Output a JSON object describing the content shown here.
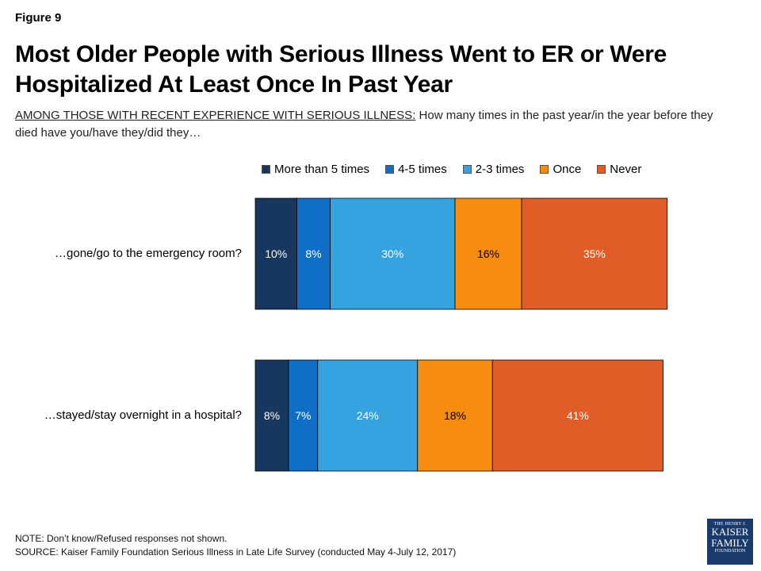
{
  "figure_label": "Figure 9",
  "subtitle_lead": "AMONG THOSE WITH RECENT EXPERIENCE WITH SERIOUS ILLNESS:",
  "subtitle_rest": " How many times in the past year/in the year before they died have you/have they/did they…",
  "note": "NOTE: Don’t know/Refused responses not shown.",
  "source": "SOURCE: Kaiser Family Foundation Serious Illness in Late Life Survey (conducted May 4-July 12, 2017)",
  "logo": {
    "line1": "THE HENRY J.",
    "line2": "KAISER",
    "line3": "FAMILY",
    "line4": "FOUNDATION"
  },
  "colors": {
    "more_than_5": "#17375e",
    "four_five": "#0f6fc6",
    "two_three": "#34a3e0",
    "once": "#f78c11",
    "never": "#e15d28"
  },
  "chart_data": {
    "type": "bar",
    "orientation": "horizontal-stacked",
    "title": "Most Older People with Serious Illness Went to ER or Were Hospitalized At Least Once In Past Year",
    "categories": [
      "…gone/go to the emergency room?",
      "…stayed/stay overnight in a hospital?"
    ],
    "series": [
      {
        "name": "More than 5 times",
        "color": "#17375e",
        "values": [
          10,
          8
        ]
      },
      {
        "name": "4-5 times",
        "color": "#0f6fc6",
        "values": [
          8,
          7
        ]
      },
      {
        "name": "2-3 times",
        "color": "#34a3e0",
        "values": [
          30,
          24
        ]
      },
      {
        "name": "Once",
        "color": "#f78c11",
        "values": [
          16,
          18
        ]
      },
      {
        "name": "Never",
        "color": "#e15d28",
        "values": [
          35,
          41
        ]
      }
    ],
    "value_suffix": "%",
    "legend_position": "top",
    "grid": false
  }
}
